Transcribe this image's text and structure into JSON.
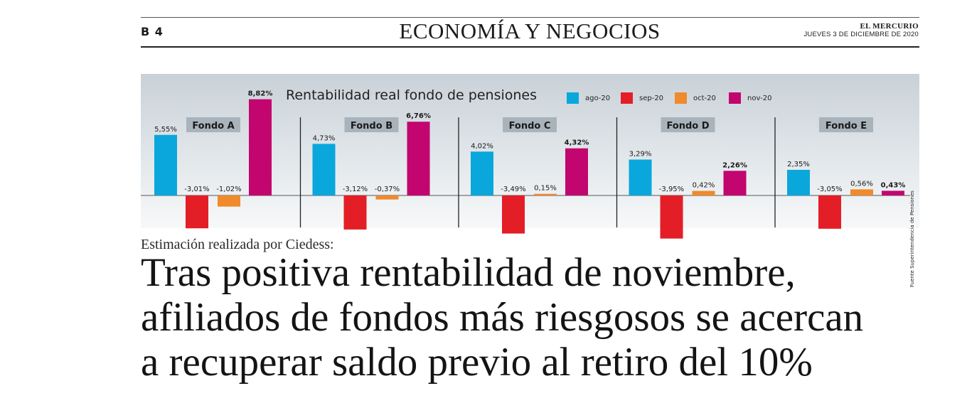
{
  "header": {
    "page": "B 4",
    "section": "ECONOMÍA Y NEGOCIOS",
    "paper": "EL MERCURIO",
    "date": "JUEVES 3 DE DICIEMBRE DE 2020"
  },
  "colors": {
    "ago-20": "#0aa7dc",
    "sep-20": "#e41e26",
    "oct-20": "#f08a2c",
    "nov-20": "#c2056f",
    "panel_label_bg": "#a9b3bb"
  },
  "chart_data": {
    "type": "bar",
    "title": "Rentabilidad real fondo de pensiones",
    "source": "Fuente Superintendencia de Pensiones",
    "legend": [
      "ago-20",
      "sep-20",
      "oct-20",
      "nov-20"
    ],
    "legend_placement": "top",
    "categories": [
      "Fondo A",
      "Fondo B",
      "Fondo C",
      "Fondo D",
      "Fondo E"
    ],
    "series": [
      {
        "name": "ago-20",
        "values": [
          5.55,
          4.73,
          4.02,
          3.29,
          2.35
        ],
        "labels": [
          "5,55%",
          "4,73%",
          "4,02%",
          "3,29%",
          "2,35%"
        ]
      },
      {
        "name": "sep-20",
        "values": [
          -3.01,
          -3.12,
          -3.49,
          -3.95,
          -3.05
        ],
        "labels": [
          "-3,01%",
          "-3,12%",
          "-3,49%",
          "-3,95%",
          "-3,05%"
        ]
      },
      {
        "name": "oct-20",
        "values": [
          -1.02,
          -0.37,
          0.15,
          0.42,
          0.56
        ],
        "labels": [
          "-1,02%",
          "-0,37%",
          "0,15%",
          "0,42%",
          "0,56%"
        ]
      },
      {
        "name": "nov-20",
        "values": [
          8.82,
          6.76,
          4.32,
          2.26,
          0.43
        ],
        "labels": [
          "8,82%",
          "6,76%",
          "4,32%",
          "2,26%",
          "0,43%"
        ]
      }
    ],
    "highlight_series": "nov-20"
  },
  "article": {
    "kicker": "Estimación realizada por Ciedess:",
    "headline_lines": [
      "Tras positiva rentabilidad de noviembre,",
      "afiliados de fondos más riesgosos se acercan",
      "a recuperar saldo previo al retiro del 10%"
    ]
  }
}
